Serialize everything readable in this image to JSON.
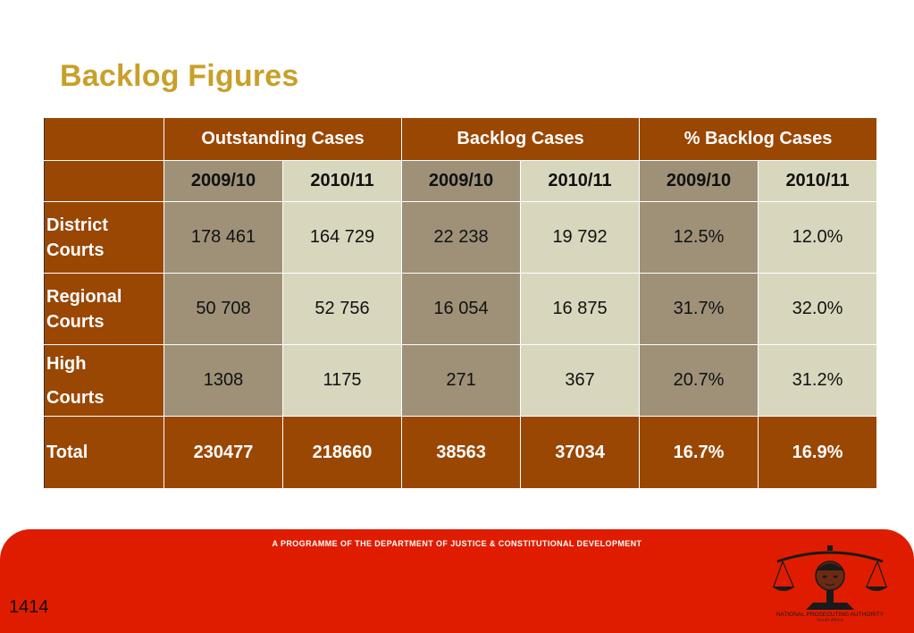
{
  "title": "Backlog Figures",
  "table": {
    "groups": [
      "Outstanding Cases",
      "Backlog Cases",
      "% Backlog Cases"
    ],
    "years": [
      "2009/10",
      "2010/11",
      "2009/10",
      "2010/11",
      "2009/10",
      "2010/11"
    ],
    "rows": [
      {
        "label_line1": "District",
        "label_line2": "Courts",
        "values": [
          "178 461",
          "164 729",
          "22 238",
          "19 792",
          "12.5%",
          "12.0%"
        ]
      },
      {
        "label_line1": "Regional",
        "label_line2": "Courts",
        "values": [
          "50 708",
          "52 756",
          "16 054",
          "16 875",
          "31.7%",
          "32.0%"
        ]
      },
      {
        "label_line1": "High",
        "label_line2": "Courts",
        "values": [
          "1308",
          "1175",
          "271",
          "367",
          "20.7%",
          "31.2%"
        ]
      }
    ],
    "total": {
      "label": "Total",
      "values": [
        "230477",
        "218660",
        "38563",
        "37034",
        "16.7%",
        "16.9%"
      ]
    }
  },
  "footer": {
    "programme_text": "A PROGRAMME OF THE DEPARTMENT OF JUSTICE & CONSTITUTIONAL DEVELOPMENT",
    "page_number": "1414",
    "logo_title": "NATIONAL PROSECUTING AUTHORITY",
    "logo_subtitle": "South Africa"
  },
  "colors": {
    "title": "#c8a02a",
    "header_brown": "#9a4704",
    "cell_grey": "#9e9178",
    "cell_cream": "#d8d7bd",
    "footer_red": "#e01c00"
  },
  "icons": {
    "logo": "scales-of-justice-icon"
  }
}
